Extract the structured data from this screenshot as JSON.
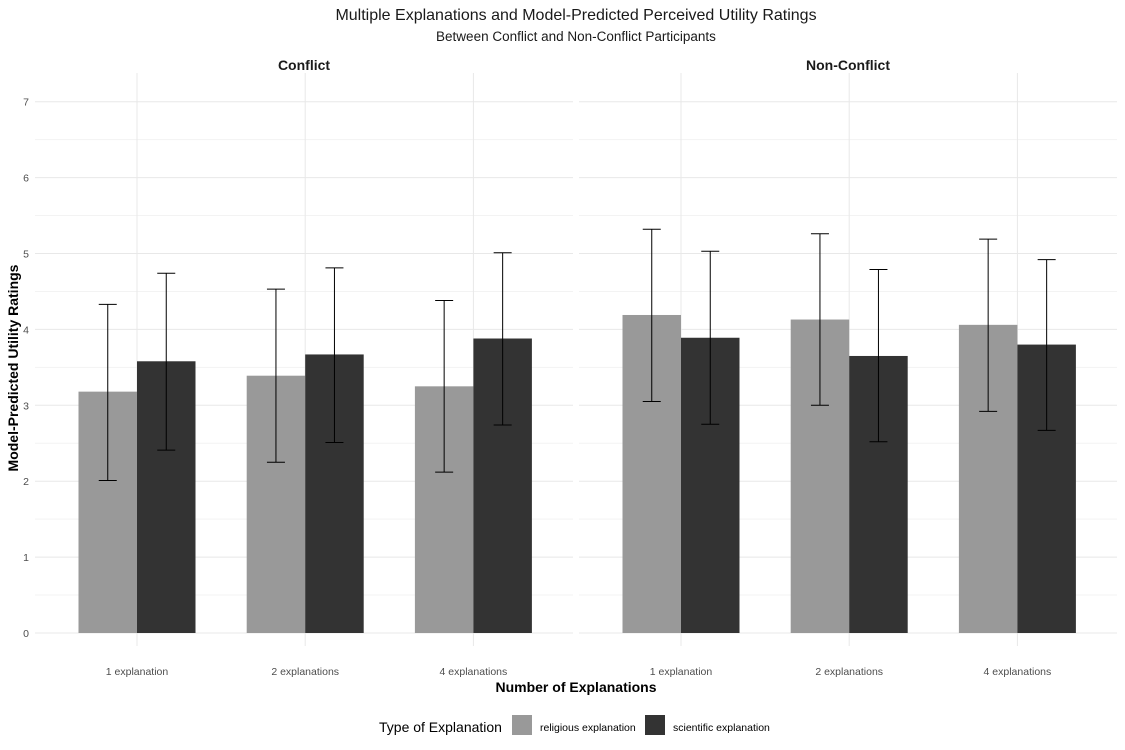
{
  "chart_data": {
    "type": "bar",
    "title": "Multiple Explanations and Model-Predicted Perceived Utility Ratings",
    "subtitle": "Between Conflict and Non-Conflict Participants",
    "xlabel": "Number of Explanations",
    "ylabel": "Model-Predicted Utility Ratings",
    "ylim": [
      0,
      7
    ],
    "yticks": [
      "0",
      "1",
      "2",
      "3",
      "4",
      "5",
      "6",
      "7"
    ],
    "categories": [
      "1 explanation",
      "2 explanations",
      "4 explanations"
    ],
    "grid": true,
    "legend": {
      "title": "Type of Explanation",
      "position": "bottom",
      "entries": [
        "religious explanation",
        "scientific explanation"
      ]
    },
    "colors": {
      "religious explanation": "#999999",
      "scientific explanation": "#333333",
      "errorbar": "#000000"
    },
    "panels": [
      {
        "name": "Conflict",
        "series": [
          {
            "name": "religious explanation",
            "values": [
              3.18,
              3.39,
              3.25
            ],
            "lower": [
              2.01,
              2.25,
              2.12
            ],
            "upper": [
              4.33,
              4.53,
              4.38
            ]
          },
          {
            "name": "scientific explanation",
            "values": [
              3.58,
              3.67,
              3.88
            ],
            "lower": [
              2.41,
              2.51,
              2.74
            ],
            "upper": [
              4.74,
              4.81,
              5.01
            ]
          }
        ]
      },
      {
        "name": "Non-Conflict",
        "series": [
          {
            "name": "religious explanation",
            "values": [
              4.19,
              4.13,
              4.06
            ],
            "lower": [
              3.05,
              3.0,
              2.92
            ],
            "upper": [
              5.32,
              5.26,
              5.19
            ]
          },
          {
            "name": "scientific explanation",
            "values": [
              3.89,
              3.65,
              3.8
            ],
            "lower": [
              2.75,
              2.52,
              2.67
            ],
            "upper": [
              5.03,
              4.79,
              4.92
            ]
          }
        ]
      }
    ]
  }
}
